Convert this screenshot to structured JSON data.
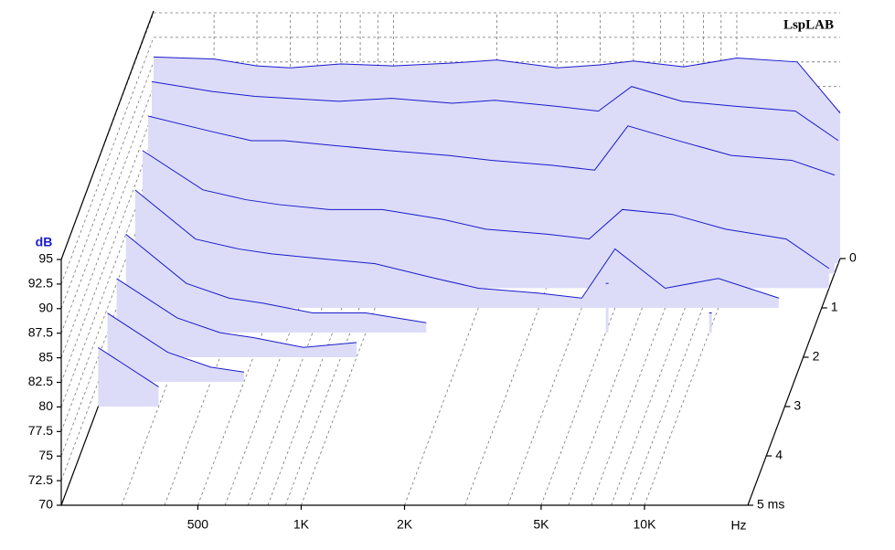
{
  "chart_data": {
    "type": "waterfall",
    "brand": "LspLAB",
    "ylabel": "dB",
    "xlabel": "Hz",
    "ylim": [
      70,
      95
    ],
    "yticks": [
      70,
      72.5,
      75,
      77.5,
      80,
      82.5,
      85,
      87.5,
      90,
      92.5,
      95
    ],
    "xlim": [
      200,
      20000
    ],
    "log_x": true,
    "xticks": [
      {
        "value": 500,
        "label": "500"
      },
      {
        "value": 1000,
        "label": "1K"
      },
      {
        "value": 2000,
        "label": "2K"
      },
      {
        "value": 5000,
        "label": "5K"
      },
      {
        "value": 10000,
        "label": "10K"
      }
    ],
    "xgrid_minor": [
      300,
      400,
      600,
      700,
      800,
      900,
      3000,
      4000,
      6000,
      7000,
      8000,
      9000
    ],
    "tlim": [
      0,
      5
    ],
    "tticks": [
      0,
      1,
      2,
      3,
      4,
      {
        "value": 5,
        "label": "5 ms"
      }
    ],
    "grid": true,
    "fill": "#dcdcf8",
    "color": "#1a1acc",
    "x": [
      200,
      300,
      400,
      500,
      700,
      1000,
      1500,
      2000,
      3000,
      4000,
      5000,
      7000,
      10000,
      15000,
      20000
    ],
    "series": [
      {
        "time": 0,
        "values": [
          90.5,
          90.3,
          89.6,
          89.4,
          89.8,
          89.6,
          89.9,
          90.2,
          89.4,
          89.7,
          90.1,
          89.5,
          90.4,
          90.0,
          84.8
        ]
      },
      {
        "time": 0.1,
        "values": [
          88.5,
          87.5,
          87,
          86.8,
          86.5,
          86.8,
          86.3,
          86.6,
          86,
          85.5,
          88,
          86.5,
          86,
          85.5,
          82.5
        ]
      },
      {
        "time": 0.3,
        "values": [
          86,
          84.5,
          83.5,
          83.5,
          83,
          82.5,
          82,
          81.5,
          81,
          80.5,
          85,
          83.5,
          82,
          81.5,
          80
        ]
      },
      {
        "time": 0.6,
        "values": [
          84,
          80,
          79,
          78.5,
          78,
          78,
          77,
          76,
          75.5,
          75,
          78,
          77.5,
          76,
          75,
          72
        ]
      },
      {
        "time": 1.0,
        "values": [
          82,
          77,
          76,
          75.5,
          75,
          74.5,
          73,
          72,
          71.5,
          71,
          76,
          72,
          73,
          71,
          null
        ]
      },
      {
        "time": 1.5,
        "values": [
          80,
          75,
          73.5,
          73,
          72,
          72,
          71,
          null,
          null,
          null,
          75,
          null,
          72,
          null,
          null
        ]
      },
      {
        "time": 2.0,
        "values": [
          78,
          74,
          72.5,
          72,
          71,
          71.5,
          null,
          null,
          null,
          null,
          null,
          null,
          null,
          null,
          null
        ]
      },
      {
        "time": 2.5,
        "values": [
          77,
          73,
          71.5,
          71,
          null,
          null,
          null,
          null,
          null,
          null,
          null,
          null,
          null,
          null,
          null
        ]
      },
      {
        "time": 3.0,
        "values": [
          76,
          72,
          null,
          null,
          null,
          null,
          null,
          null,
          null,
          null,
          null,
          null,
          null,
          null,
          null
        ]
      }
    ]
  }
}
